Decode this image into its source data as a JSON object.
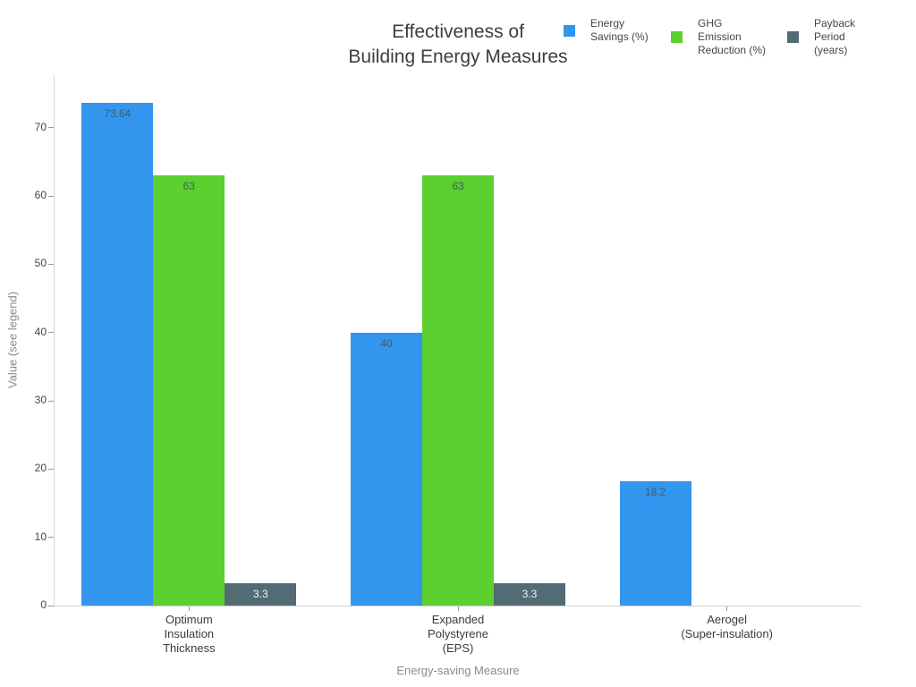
{
  "title": {
    "line1": "Effectiveness of",
    "line2": "Building Energy Measures"
  },
  "chart_data": {
    "type": "bar",
    "title": "Effectiveness of Building Energy Measures",
    "xlabel": "Energy-saving Measure",
    "ylabel": "Value (see legend)",
    "categories": [
      "Optimum\nInsulation\nThickness",
      "Expanded\nPolystyrene\n(EPS)",
      "Aerogel\n(Super-insulation)"
    ],
    "series": [
      {
        "id": "energy-savings",
        "name": "Energy Savings (%)",
        "legend_label": "Energy\nSavings (%)",
        "color": "#3295ee",
        "label_color": "#455a64",
        "values": [
          73.64,
          40,
          18.2
        ]
      },
      {
        "id": "ghg-emission-reduction",
        "name": "GHG Emission Reduction (%)",
        "legend_label": "GHG\nEmission\nReduction (%)",
        "color": "#5bd02e",
        "label_color": "#455a64",
        "values": [
          63,
          63,
          null
        ]
      },
      {
        "id": "payback-period",
        "name": "Payback Period (years)",
        "legend_label": "Payback\nPeriod\n(years)",
        "color": "#526b75",
        "label_color": "#f2f5f5",
        "values": [
          3.3,
          3.3,
          null
        ]
      }
    ],
    "ylim": [
      0,
      77.7
    ],
    "yticks": [
      0,
      10,
      20,
      30,
      40,
      50,
      60,
      70
    ],
    "grid": false,
    "legend_position": "top-right",
    "bar_value_labels": true
  }
}
